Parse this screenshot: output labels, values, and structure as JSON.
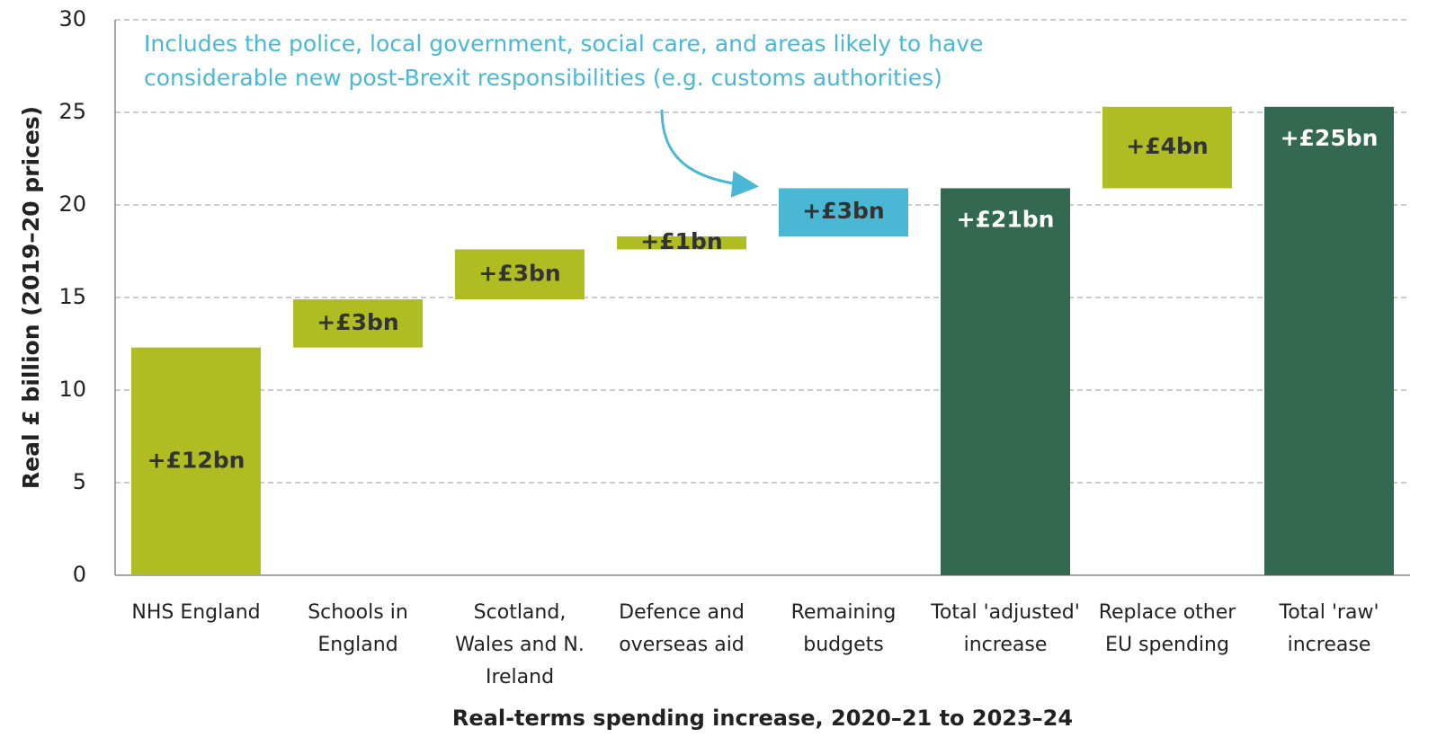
{
  "chart_data": {
    "type": "waterfall",
    "categories": [
      "NHS England",
      "Schools in England",
      "Scotland, Wales and N. Ireland",
      "Defence and overseas aid",
      "Remaining budgets",
      "Total 'adjusted' increase",
      "Replace other EU spending",
      "Total 'raw' increase"
    ],
    "measure": [
      "relative",
      "relative",
      "relative",
      "relative",
      "relative",
      "total",
      "relative",
      "total"
    ],
    "values": [
      12.3,
      2.6,
      2.7,
      0.7,
      2.6,
      20.9,
      4.4,
      25.3
    ],
    "value_labels": [
      "+£12bn",
      "+£3bn",
      "+£3bn",
      "+£1bn",
      "+£3bn",
      "+£21bn",
      "+£4bn",
      "+£25bn"
    ],
    "colors": [
      "#afbd22",
      "#afbd22",
      "#afbd22",
      "#afbd22",
      "#4ab8d4",
      "#336950",
      "#afbd22",
      "#336950"
    ],
    "ylabel": "Real £ billion (2019–20 prices)",
    "xlabel": "Real-terms spending increase, 2020–21 to 2023–24",
    "annotation": [
      "Includes the police, local government, social care, and areas likely to have",
      "considerable new post-Brexit responsibilities (e.g. customs authorities)"
    ],
    "ylim": [
      0,
      30
    ],
    "yticks": [
      0,
      5,
      10,
      15,
      20,
      25,
      30
    ],
    "grid": true
  }
}
